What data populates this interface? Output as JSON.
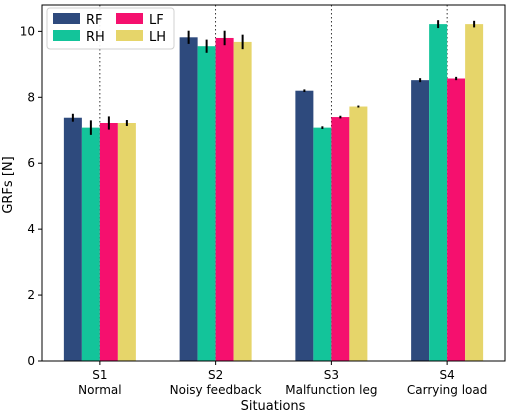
{
  "chart_data": {
    "type": "bar",
    "title": "",
    "xlabel": "Situations",
    "ylabel": "GRFs [N]",
    "ylim": [
      0,
      10.8
    ],
    "yticks": [
      0,
      2,
      4,
      6,
      8,
      10
    ],
    "grid": "x-dotted",
    "legend_position": "top-left",
    "categories": [
      {
        "code": "S1",
        "name": "Normal"
      },
      {
        "code": "S2",
        "name": "Noisy feedback"
      },
      {
        "code": "S3",
        "name": "Malfunction leg"
      },
      {
        "code": "S4",
        "name": "Carrying load"
      }
    ],
    "series": [
      {
        "name": "RF",
        "color": "#2e4a7d",
        "values": [
          7.38,
          9.82,
          8.2,
          8.52
        ],
        "errors": [
          0.12,
          0.2,
          0.04,
          0.06
        ]
      },
      {
        "name": "RH",
        "color": "#13c49a",
        "values": [
          7.08,
          9.55,
          7.08,
          10.22
        ],
        "errors": [
          0.22,
          0.2,
          0.04,
          0.12
        ]
      },
      {
        "name": "LF",
        "color": "#f5106e",
        "values": [
          7.22,
          9.8,
          7.4,
          8.57
        ],
        "errors": [
          0.2,
          0.22,
          0.04,
          0.05
        ]
      },
      {
        "name": "LH",
        "color": "#e6d56a",
        "values": [
          7.22,
          9.68,
          7.72,
          10.22
        ],
        "errors": [
          0.09,
          0.22,
          0.03,
          0.1
        ]
      }
    ]
  }
}
